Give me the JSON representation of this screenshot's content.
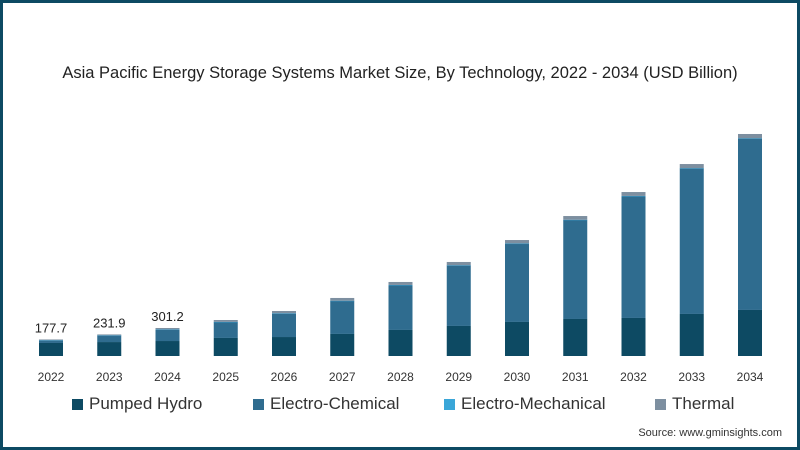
{
  "chart_data": {
    "type": "bar",
    "stacked": true,
    "title": "Asia Pacific Energy Storage Systems Market Size, By Technology, 2022 - 2034 (USD Billion)",
    "xlabel": "",
    "ylabel": "",
    "ylim": [
      0,
      2645
    ],
    "grid": false,
    "legend_position": "bottom",
    "categories": [
      "2022",
      "2023",
      "2024",
      "2025",
      "2026",
      "2027",
      "2028",
      "2029",
      "2030",
      "2031",
      "2032",
      "2033",
      "2034"
    ],
    "series": [
      {
        "name": "Pumped Hydro",
        "color": "#0d4a63",
        "values": [
          140,
          150,
          161,
          194,
          204,
          237,
          280,
          323,
          366,
          398,
          409,
          452,
          495
        ]
      },
      {
        "name": "Electro-Chemical",
        "color": "#2f6c8f",
        "values": [
          29.2,
          69.3,
          124.5,
          172.2,
          254,
          356,
          482.8,
          651.6,
          841.4,
          1065.2,
          1310,
          1565.8,
          1844.6
        ]
      },
      {
        "name": "Electro-Mechanical",
        "color": "#3aa6d8",
        "values": [
          0.5,
          0.6,
          0.7,
          0.8,
          1,
          1,
          1.2,
          1.4,
          1.6,
          1.8,
          2,
          2.2,
          2.4
        ]
      },
      {
        "name": "Thermal",
        "color": "#7d8fa0",
        "values": [
          8,
          12,
          15,
          20,
          25,
          30,
          32,
          35,
          38,
          40,
          42,
          44,
          45
        ]
      }
    ],
    "data_labels": [
      {
        "category": "2022",
        "text": "177.7"
      },
      {
        "category": "2023",
        "text": "231.9"
      },
      {
        "category": "2024",
        "text": "301.2"
      }
    ],
    "source": "Source: www.gminsights.com"
  }
}
